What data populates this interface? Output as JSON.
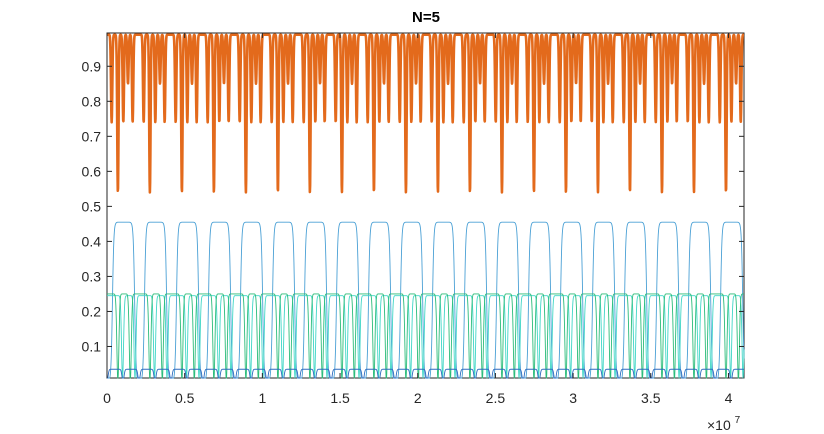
{
  "chart_data": {
    "type": "line",
    "title": "N=5",
    "xlabel": "",
    "ylabel": "",
    "x_exponent_label": "×10",
    "x_exponent_power": "7",
    "xlim": [
      0,
      4.1
    ],
    "ylim": [
      0.01,
      0.995
    ],
    "x_ticks": [
      0,
      0.5,
      1,
      1.5,
      2,
      2.5,
      3,
      3.5,
      4
    ],
    "x_tick_labels": [
      "0",
      "0.5",
      "1",
      "1.5",
      "2",
      "2.5",
      "3",
      "3.5",
      "4"
    ],
    "y_ticks": [
      0.1,
      0.2,
      0.3,
      0.4,
      0.5,
      0.6,
      0.7,
      0.8,
      0.9
    ],
    "y_tick_labels": [
      "0.1",
      "0.2",
      "0.3",
      "0.4",
      "0.5",
      "0.6",
      "0.7",
      "0.8",
      "0.9"
    ],
    "grid": false,
    "legend": "none",
    "period": 0.206,
    "series": [
      {
        "color": "#e36a1c",
        "line_width": "thick",
        "high": 0.99,
        "dips": [
          {
            "offset": 0.03,
            "min": 0.74
          },
          {
            "offset": 0.07,
            "min": 0.54
          },
          {
            "offset": 0.105,
            "min": 0.74
          },
          {
            "offset": 0.135,
            "min": 0.85
          },
          {
            "offset": 0.165,
            "min": 0.74
          }
        ]
      },
      {
        "color": "#4aa0d5",
        "line_width": "thin",
        "high": 0.455,
        "low": 0.0,
        "transitions_at": [
          0.035,
          0.178
        ]
      },
      {
        "color": "#2bbc7a",
        "line_width": "thin",
        "high": 0.25,
        "low": 0.0,
        "dip_offsets": [
          0.07,
          0.15
        ]
      },
      {
        "color": "#3fd6c6",
        "line_width": "thin",
        "high": 0.245,
        "low": 0.01,
        "dip_offsets": [
          0.1,
          0.18
        ]
      },
      {
        "color": "#2d6bbf",
        "line_width": "thin",
        "high": 0.035,
        "low": 0.0,
        "dip_offsets": [
          0.0,
          0.103
        ]
      }
    ]
  }
}
